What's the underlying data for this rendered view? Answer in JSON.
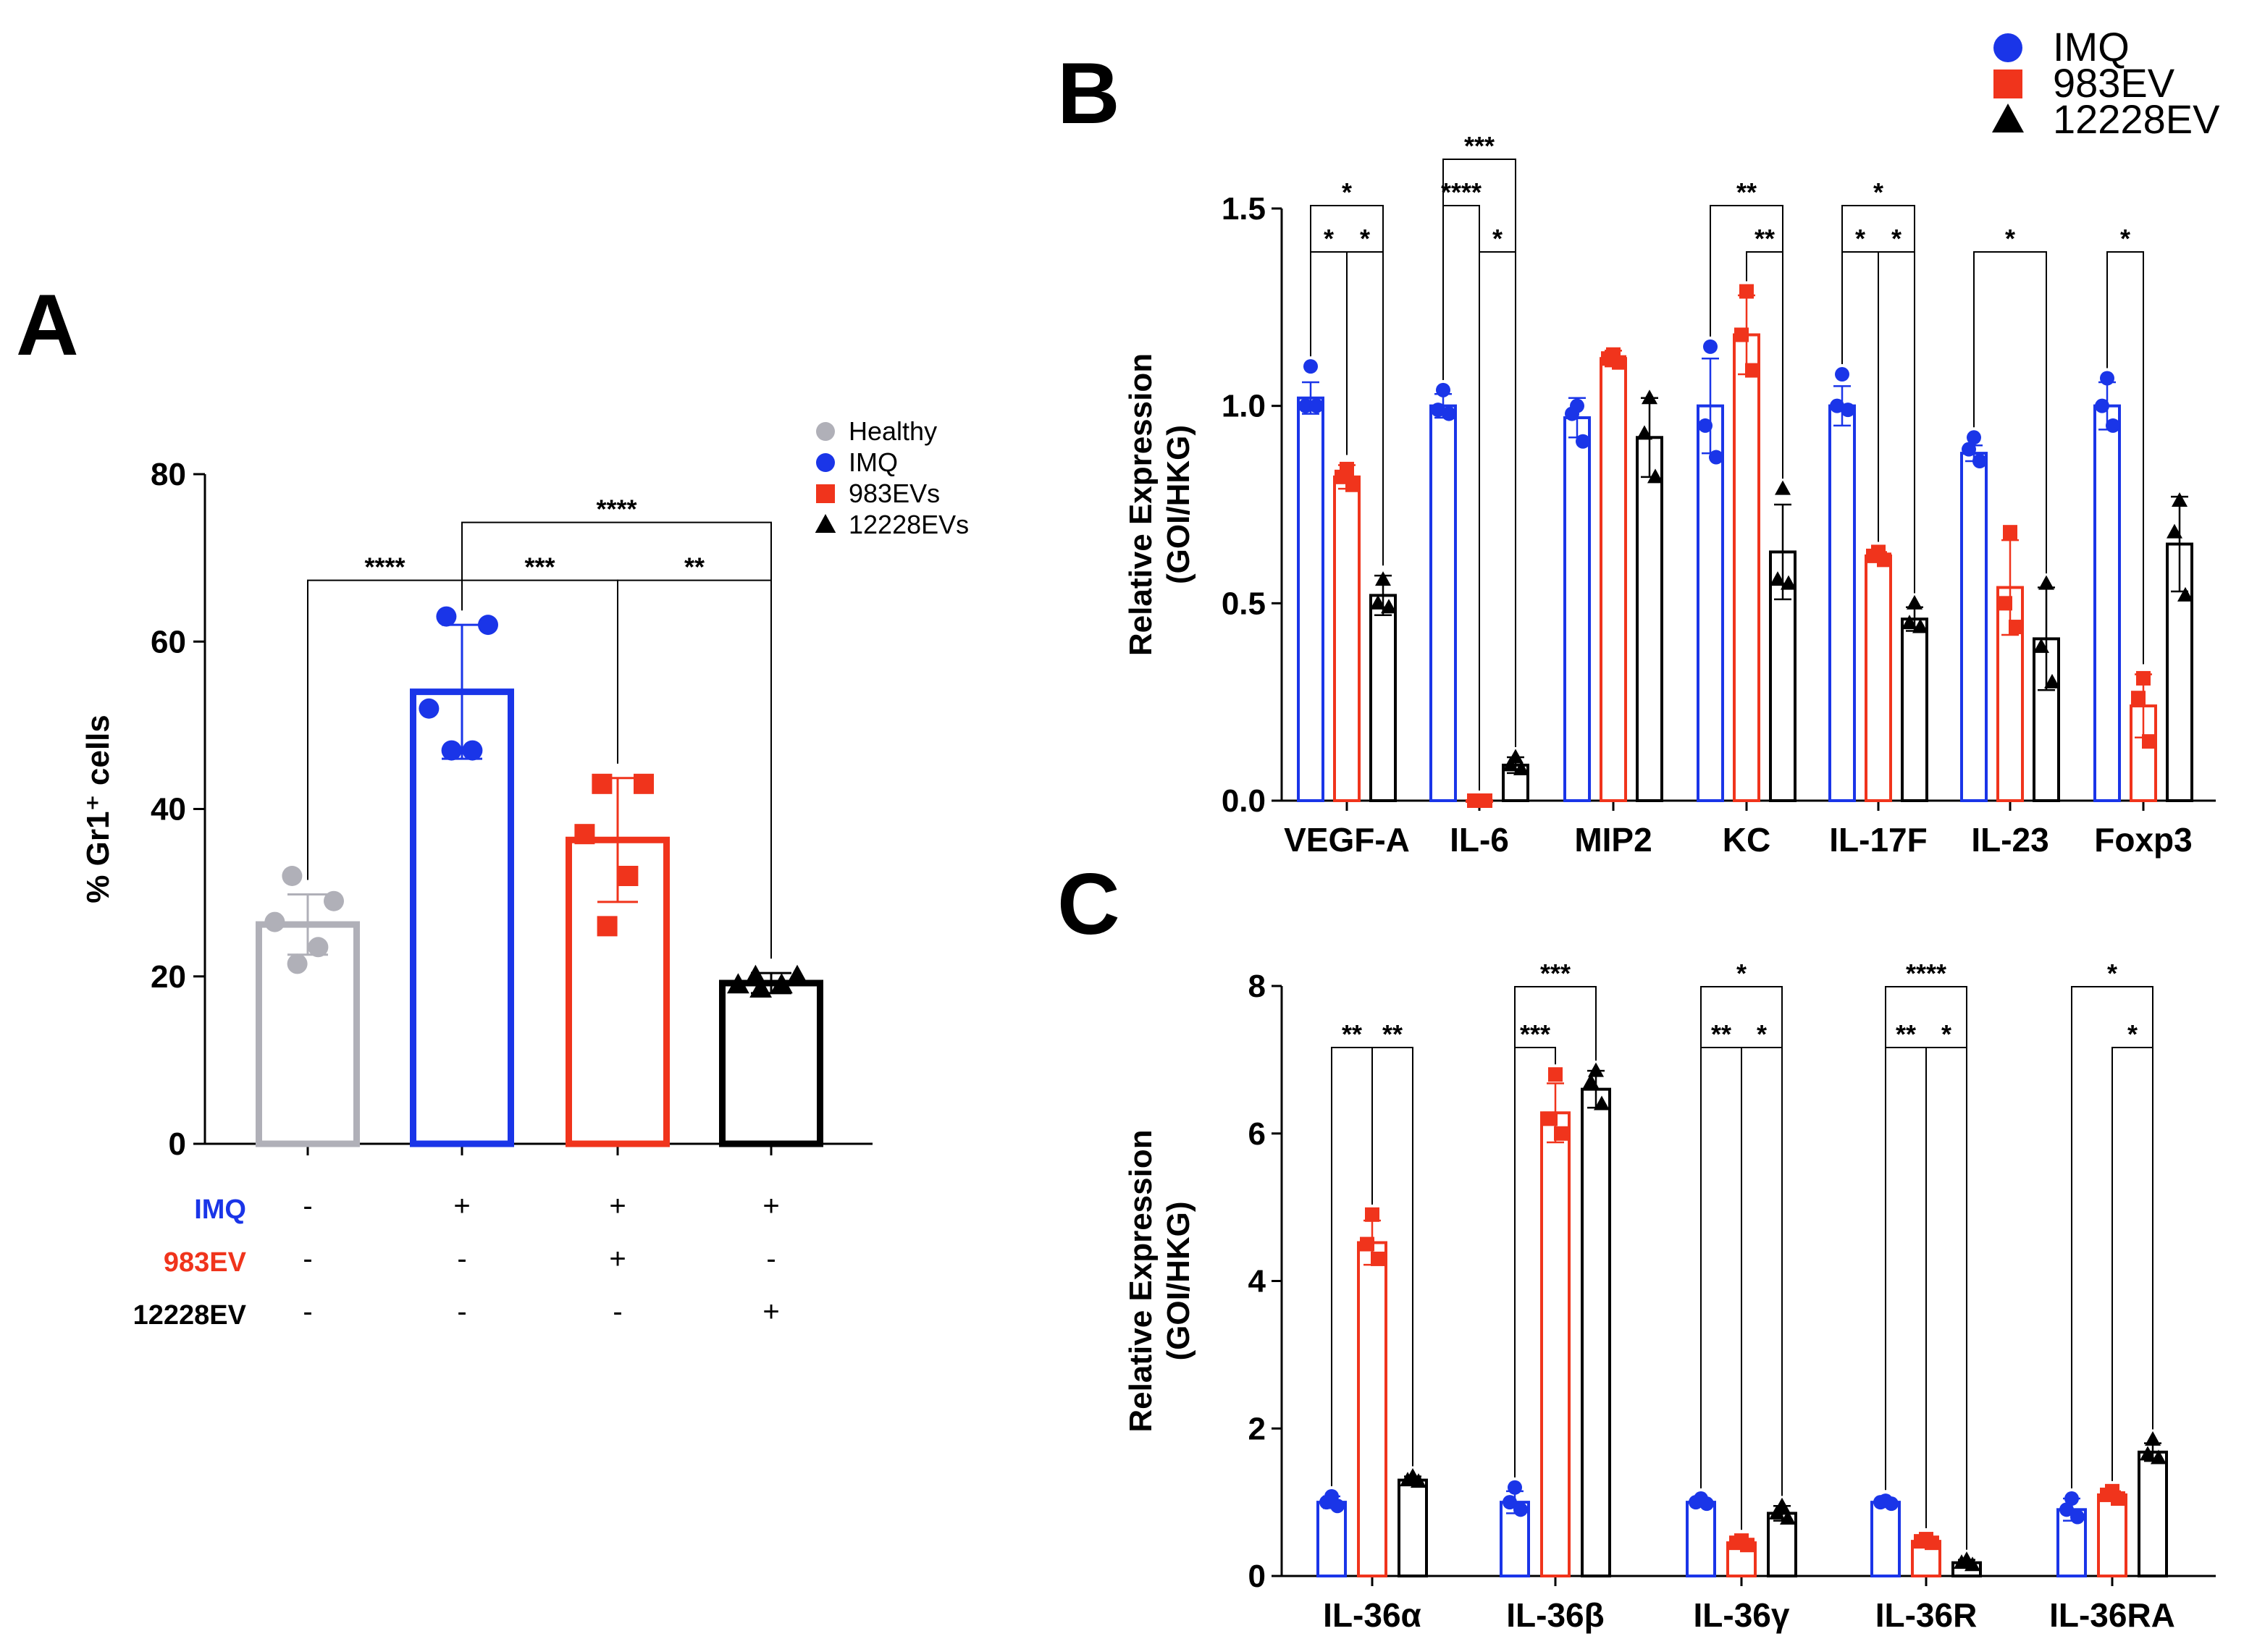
{
  "colors": {
    "healthy": "#b0b0b8",
    "imq": "#1a35e8",
    "ev983": "#f0341c",
    "ev12228": "#000000"
  },
  "panel_letters": {
    "a": "A",
    "b": "B",
    "c": "C"
  },
  "chart_data": [
    {
      "panel": "A",
      "type": "bar",
      "ylabel": "% Gr1⁺ cells",
      "ylim": [
        0,
        80
      ],
      "yticks": [
        "0",
        "20",
        "40",
        "60",
        "80"
      ],
      "legend": [
        "Healthy",
        "IMQ",
        "983EVs",
        "12228EVs"
      ],
      "legend_placement": "top-right",
      "categories": [
        "Healthy",
        "IMQ",
        "IMQ + 983EV",
        "IMQ + 12228EV"
      ],
      "values": [
        26.2,
        54.0,
        36.3,
        19.2
      ],
      "errors": [
        3.6,
        8.0,
        7.4,
        1.2
      ],
      "points": [
        [
          32,
          29,
          26.5,
          23.5,
          21.5
        ],
        [
          63,
          62,
          52,
          47,
          47
        ],
        [
          43,
          43,
          37,
          32,
          26
        ],
        [
          20,
          20,
          19,
          19,
          18.5
        ]
      ],
      "significance": [
        {
          "label": "****",
          "from": 0,
          "to": 1
        },
        {
          "label": "***",
          "from": 1,
          "to": 2
        },
        {
          "label": "**",
          "from": 2,
          "to": 3
        },
        {
          "label": "****",
          "from": 1,
          "to": 3
        }
      ],
      "condition_table": {
        "rows": [
          {
            "label": "IMQ",
            "values": [
              "-",
              "+",
              "+",
              "+"
            ]
          },
          {
            "label": "983EV",
            "values": [
              "-",
              "-",
              "+",
              "-"
            ]
          },
          {
            "label": "12228EV",
            "values": [
              "-",
              "-",
              "-",
              "+"
            ]
          }
        ]
      }
    },
    {
      "panel": "B",
      "type": "bar",
      "ylabel": "Relative Expression",
      "ylabel2": "(GOI/HKG)",
      "ylim": [
        0,
        1.5
      ],
      "yticks": [
        "0.0",
        "0.5",
        "1.0",
        "1.5"
      ],
      "legend": [
        "IMQ",
        "983EV",
        "12228EV"
      ],
      "legend_placement": "top-right",
      "categories": [
        "VEGF-A",
        "IL-6",
        "MIP2",
        "KC",
        "IL-17F",
        "IL-23",
        "Foxp3"
      ],
      "series": [
        {
          "name": "IMQ",
          "values": [
            1.02,
            1.0,
            0.97,
            1.0,
            1.0,
            0.88,
            1.0
          ],
          "errors": [
            0.04,
            0.03,
            0.05,
            0.12,
            0.05,
            0.02,
            0.06
          ],
          "points": [
            [
              1.1,
              1.0,
              1.0
            ],
            [
              1.04,
              0.99,
              0.98
            ],
            [
              1.0,
              0.98,
              0.91
            ],
            [
              1.15,
              0.95,
              0.87
            ],
            [
              1.08,
              1.0,
              0.99
            ],
            [
              0.92,
              0.89,
              0.86
            ],
            [
              1.07,
              1.0,
              0.95
            ]
          ]
        },
        {
          "name": "983EV",
          "values": [
            0.82,
            0.0,
            1.12,
            1.18,
            0.62,
            0.54,
            0.24
          ],
          "errors": [
            0.03,
            0.0,
            0.02,
            0.1,
            0.01,
            0.12,
            0.08
          ],
          "points": [
            [
              0.84,
              0.82,
              0.8
            ],
            [
              0.0,
              0.0,
              0.0
            ],
            [
              1.13,
              1.12,
              1.11
            ],
            [
              1.29,
              1.18,
              1.09
            ],
            [
              0.63,
              0.62,
              0.61
            ],
            [
              0.68,
              0.5,
              0.44
            ],
            [
              0.31,
              0.26,
              0.15
            ]
          ]
        },
        {
          "name": "12228EV",
          "values": [
            0.52,
            0.09,
            0.92,
            0.63,
            0.46,
            0.41,
            0.65
          ],
          "errors": [
            0.05,
            0.02,
            0.1,
            0.12,
            0.03,
            0.13,
            0.12
          ],
          "points": [
            [
              0.56,
              0.5,
              0.49
            ],
            [
              0.11,
              0.09,
              0.08
            ],
            [
              1.02,
              0.93,
              0.82
            ],
            [
              0.79,
              0.56,
              0.55
            ],
            [
              0.5,
              0.45,
              0.44
            ],
            [
              0.55,
              0.39,
              0.3
            ],
            [
              0.76,
              0.68,
              0.52
            ]
          ]
        }
      ],
      "significance": [
        {
          "cat": 0,
          "label": "*",
          "from": 0,
          "to": 1,
          "level": 1
        },
        {
          "cat": 0,
          "label": "*",
          "from": 1,
          "to": 2,
          "level": 1
        },
        {
          "cat": 0,
          "label": "*",
          "from": 0,
          "to": 2,
          "level": 2
        },
        {
          "cat": 1,
          "label": "*",
          "from": 1,
          "to": 2,
          "level": 1
        },
        {
          "cat": 1,
          "label": "****",
          "from": 0,
          "to": 1,
          "level": 2
        },
        {
          "cat": 1,
          "label": "***",
          "from": 0,
          "to": 2,
          "level": 3
        },
        {
          "cat": 3,
          "label": "**",
          "from": 1,
          "to": 2,
          "level": 1
        },
        {
          "cat": 3,
          "label": "**",
          "from": 0,
          "to": 2,
          "level": 2
        },
        {
          "cat": 4,
          "label": "*",
          "from": 0,
          "to": 1,
          "level": 1
        },
        {
          "cat": 4,
          "label": "*",
          "from": 1,
          "to": 2,
          "level": 1
        },
        {
          "cat": 4,
          "label": "*",
          "from": 0,
          "to": 2,
          "level": 2
        },
        {
          "cat": 5,
          "label": "*",
          "from": 0,
          "to": 2,
          "level": 1
        },
        {
          "cat": 6,
          "label": "*",
          "from": 0,
          "to": 1,
          "level": 1
        }
      ]
    },
    {
      "panel": "C",
      "type": "bar",
      "ylabel": "Relative Expression",
      "ylabel2": "(GOI/HKG)",
      "ylim": [
        0,
        8
      ],
      "yticks": [
        "0",
        "2",
        "4",
        "6",
        "8"
      ],
      "categories": [
        "IL-36α",
        "IL-36β",
        "IL-36γ",
        "IL-36R",
        "IL-36RA"
      ],
      "series": [
        {
          "name": "IMQ",
          "values": [
            1.0,
            1.0,
            1.0,
            1.0,
            0.9
          ],
          "errors": [
            0.08,
            0.15,
            0.05,
            0.03,
            0.15
          ],
          "points": [
            [
              1.08,
              1.0,
              0.95
            ],
            [
              1.2,
              1.0,
              0.9
            ],
            [
              1.05,
              1.0,
              0.98
            ],
            [
              1.02,
              1.0,
              0.98
            ],
            [
              1.05,
              0.9,
              0.8
            ]
          ]
        },
        {
          "name": "983EV",
          "values": [
            4.52,
            6.28,
            0.45,
            0.47,
            1.1
          ],
          "errors": [
            0.3,
            0.4,
            0.04,
            0.04,
            0.05
          ],
          "points": [
            [
              4.9,
              4.5,
              4.3
            ],
            [
              6.8,
              6.2,
              6.0
            ],
            [
              0.48,
              0.45,
              0.42
            ],
            [
              0.5,
              0.47,
              0.45
            ],
            [
              1.15,
              1.1,
              1.05
            ]
          ]
        },
        {
          "name": "12228EV",
          "values": [
            1.3,
            6.6,
            0.85,
            0.18,
            1.68
          ],
          "errors": [
            0.05,
            0.25,
            0.1,
            0.04,
            0.12
          ],
          "points": [
            [
              1.35,
              1.3,
              1.28
            ],
            [
              6.85,
              6.7,
              6.4
            ],
            [
              0.95,
              0.85,
              0.78
            ],
            [
              0.22,
              0.18,
              0.15
            ],
            [
              1.85,
              1.65,
              1.6
            ]
          ]
        }
      ],
      "significance": [
        {
          "cat": 0,
          "label": "**",
          "from": 0,
          "to": 1,
          "level": 1
        },
        {
          "cat": 0,
          "label": "**",
          "from": 1,
          "to": 2,
          "level": 1
        },
        {
          "cat": 1,
          "label": "***",
          "from": 0,
          "to": 1,
          "level": 1
        },
        {
          "cat": 1,
          "label": "***",
          "from": 0,
          "to": 2,
          "level": 2
        },
        {
          "cat": 2,
          "label": "**",
          "from": 0,
          "to": 1,
          "level": 1
        },
        {
          "cat": 2,
          "label": "*",
          "from": 1,
          "to": 2,
          "level": 1
        },
        {
          "cat": 2,
          "label": "*",
          "from": 0,
          "to": 2,
          "level": 2
        },
        {
          "cat": 3,
          "label": "**",
          "from": 0,
          "to": 1,
          "level": 1
        },
        {
          "cat": 3,
          "label": "*",
          "from": 1,
          "to": 2,
          "level": 1
        },
        {
          "cat": 3,
          "label": "****",
          "from": 0,
          "to": 2,
          "level": 2
        },
        {
          "cat": 4,
          "label": "*",
          "from": 1,
          "to": 2,
          "level": 1
        },
        {
          "cat": 4,
          "label": "*",
          "from": 0,
          "to": 2,
          "level": 2
        }
      ]
    }
  ]
}
